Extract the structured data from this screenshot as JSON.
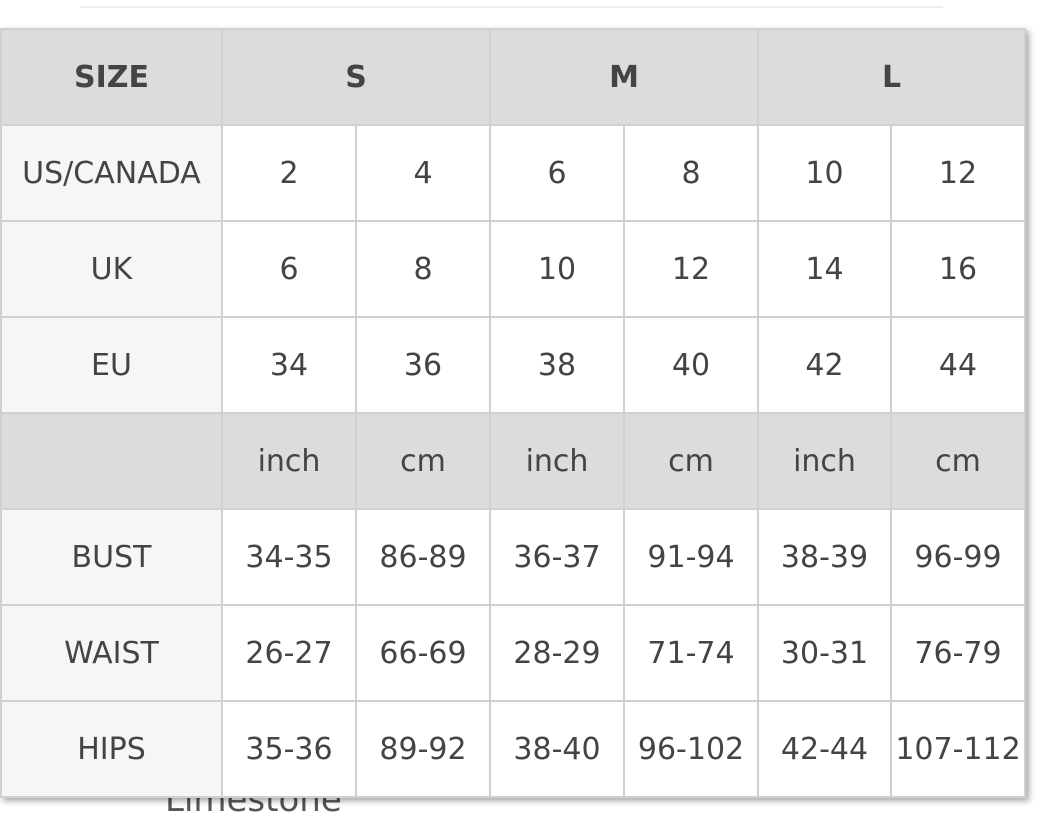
{
  "background_text": "Limestone",
  "table": {
    "header": {
      "label": "SIZE",
      "groups": [
        "S",
        "M",
        "L"
      ]
    },
    "size_rows": [
      {
        "label": "US/CANADA",
        "values": [
          "2",
          "4",
          "6",
          "8",
          "10",
          "12"
        ]
      },
      {
        "label": "UK",
        "values": [
          "6",
          "8",
          "10",
          "12",
          "14",
          "16"
        ]
      },
      {
        "label": "EU",
        "values": [
          "34",
          "36",
          "38",
          "40",
          "42",
          "44"
        ]
      }
    ],
    "units": [
      "inch",
      "cm",
      "inch",
      "cm",
      "inch",
      "cm"
    ],
    "measure_rows": [
      {
        "label": "BUST",
        "values": [
          "34-35",
          "86-89",
          "36-37",
          "91-94",
          "38-39",
          "96-99"
        ]
      },
      {
        "label": "WAIST",
        "values": [
          "26-27",
          "66-69",
          "28-29",
          "71-74",
          "30-31",
          "76-79"
        ]
      },
      {
        "label": "HIPS",
        "values": [
          "35-36",
          "89-92",
          "38-40",
          "96-102",
          "42-44",
          "107-112"
        ]
      }
    ]
  }
}
